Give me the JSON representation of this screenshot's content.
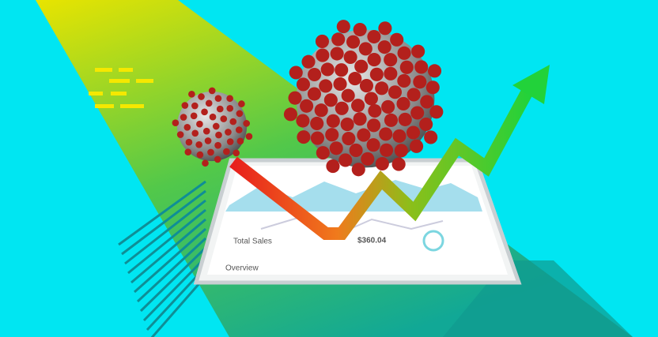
{
  "tablet": {
    "labels": {
      "overview": "Overview",
      "total_sales": "Total Sales",
      "amount": "$360.04"
    }
  }
}
